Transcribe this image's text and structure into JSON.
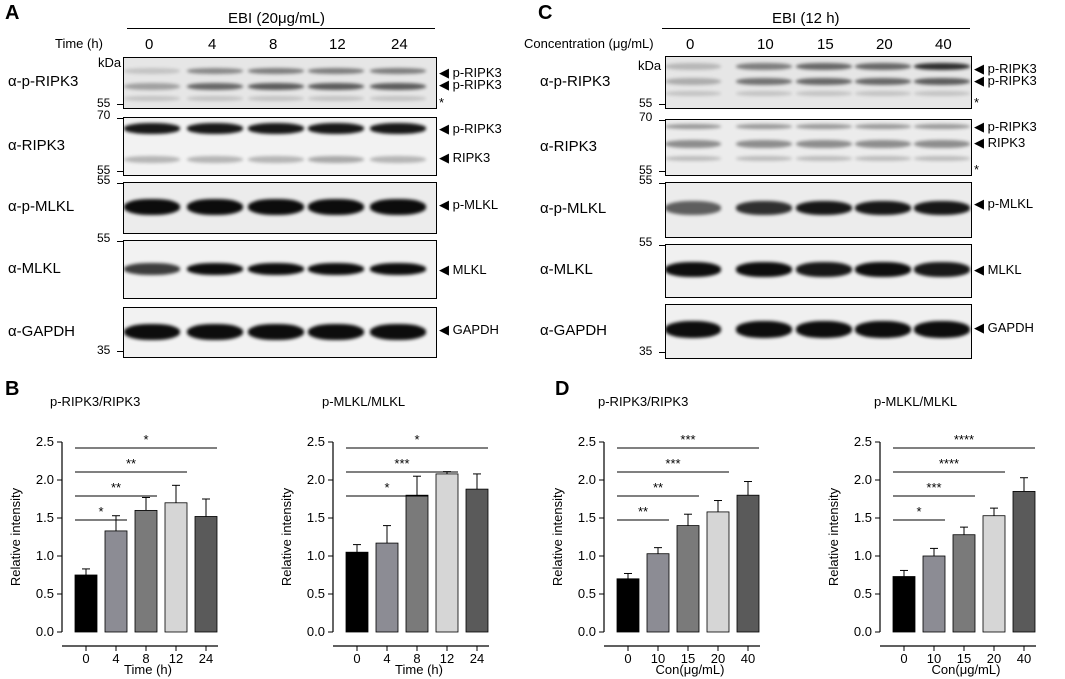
{
  "panels": {
    "A": "A",
    "B": "B",
    "C": "C",
    "D": "D"
  },
  "blotA": {
    "header": "EBI (20μg/mL)",
    "time_label": "Time (h)",
    "lanes": [
      "0",
      "4",
      "8",
      "12",
      "24"
    ],
    "kda": "kDa",
    "rows": [
      {
        "label": "α-p-RIPK3",
        "mw_top": "",
        "mw_bottom": "55",
        "arrows": [
          "p-RIPK3",
          "p-RIPK3"
        ],
        "star": "*"
      },
      {
        "label": "α-RIPK3",
        "mw_top": "70",
        "mw_bottom": "55",
        "arrows": [
          "p-RIPK3",
          "RIPK3"
        ],
        "star": ""
      },
      {
        "label": "α-p-MLKL",
        "mw_top": "55",
        "mw_bottom": "",
        "arrows": [
          "p-MLKL"
        ],
        "star": ""
      },
      {
        "label": "α-MLKL",
        "mw_top": "55",
        "mw_bottom": "",
        "arrows": [
          "MLKL"
        ],
        "star": ""
      },
      {
        "label": "α-GAPDH",
        "mw_top": "",
        "mw_bottom": "35",
        "arrows": [
          "GAPDH"
        ],
        "star": ""
      }
    ]
  },
  "blotC": {
    "header": "EBI (12 h)",
    "conc_label": "Concentration (μg/mL)",
    "lanes": [
      "0",
      "10",
      "15",
      "20",
      "40"
    ],
    "kda": "kDa",
    "rows": [
      {
        "label": "α-p-RIPK3",
        "mw_top": "",
        "mw_bottom": "55",
        "arrows": [
          "p-RIPK3",
          "p-RIPK3"
        ],
        "star": "*"
      },
      {
        "label": "α-RIPK3",
        "mw_top": "70",
        "mw_bottom": "55",
        "arrows": [
          "p-RIPK3",
          "RIPK3"
        ],
        "star": "*"
      },
      {
        "label": "α-p-MLKL",
        "mw_top": "55",
        "mw_bottom": "",
        "arrows": [
          "p-MLKL"
        ],
        "star": ""
      },
      {
        "label": "α-MLKL",
        "mw_top": "55",
        "mw_bottom": "",
        "arrows": [
          "MLKL"
        ],
        "star": ""
      },
      {
        "label": "α-GAPDH",
        "mw_top": "",
        "mw_bottom": "35",
        "arrows": [
          "GAPDH"
        ],
        "star": ""
      }
    ]
  },
  "chart_data": [
    {
      "type": "bar",
      "title": "p-RIPK3/RIPK3",
      "xlabel": "Time (h)",
      "ylabel": "Relative intensity",
      "categories": [
        "0",
        "4",
        "8",
        "12",
        "24"
      ],
      "values": [
        0.75,
        1.33,
        1.6,
        1.7,
        1.52
      ],
      "errors": [
        0.08,
        0.2,
        0.17,
        0.23,
        0.23
      ],
      "ylim": [
        0,
        2.5
      ],
      "yticks": [
        "0.0",
        "0.5",
        "1.0",
        "1.5",
        "2.0",
        "2.5"
      ],
      "sig": [
        {
          "from": 0,
          "to": 1,
          "label": "*"
        },
        {
          "from": 0,
          "to": 2,
          "label": "**"
        },
        {
          "from": 0,
          "to": 3,
          "label": "**"
        },
        {
          "from": 0,
          "to": 4,
          "label": "*"
        }
      ]
    },
    {
      "type": "bar",
      "title": "p-MLKL/MLKL",
      "xlabel": "Time (h)",
      "ylabel": "Relative intensity",
      "categories": [
        "0",
        "4",
        "8",
        "12",
        "24"
      ],
      "values": [
        1.05,
        1.17,
        1.8,
        2.08,
        1.88
      ],
      "errors": [
        0.1,
        0.23,
        0.25,
        0.03,
        0.2
      ],
      "ylim": [
        0,
        2.5
      ],
      "yticks": [
        "0.0",
        "0.5",
        "1.0",
        "1.5",
        "2.0",
        "2.5"
      ],
      "sig": [
        {
          "from": 0,
          "to": 2,
          "label": "*"
        },
        {
          "from": 0,
          "to": 3,
          "label": "***"
        },
        {
          "from": 0,
          "to": 4,
          "label": "*"
        }
      ]
    },
    {
      "type": "bar",
      "title": "p-RIPK3/RIPK3",
      "xlabel": "Con(μg/mL)",
      "ylabel": "Relative intensity",
      "categories": [
        "0",
        "10",
        "15",
        "20",
        "40"
      ],
      "values": [
        0.7,
        1.03,
        1.4,
        1.58,
        1.8
      ],
      "errors": [
        0.07,
        0.08,
        0.15,
        0.15,
        0.18
      ],
      "ylim": [
        0,
        2.5
      ],
      "yticks": [
        "0.0",
        "0.5",
        "1.0",
        "1.5",
        "2.0",
        "2.5"
      ],
      "sig": [
        {
          "from": 0,
          "to": 1,
          "label": "**"
        },
        {
          "from": 0,
          "to": 2,
          "label": "**"
        },
        {
          "from": 0,
          "to": 3,
          "label": "***"
        },
        {
          "from": 0,
          "to": 4,
          "label": "***"
        }
      ]
    },
    {
      "type": "bar",
      "title": "p-MLKL/MLKL",
      "xlabel": "Con(μg/mL)",
      "ylabel": "Relative intensity",
      "categories": [
        "0",
        "10",
        "15",
        "20",
        "40"
      ],
      "values": [
        0.73,
        1.0,
        1.28,
        1.53,
        1.85
      ],
      "errors": [
        0.08,
        0.1,
        0.1,
        0.1,
        0.18
      ],
      "ylim": [
        0,
        2.5
      ],
      "yticks": [
        "0.0",
        "0.5",
        "1.0",
        "1.5",
        "2.0",
        "2.5"
      ],
      "sig": [
        {
          "from": 0,
          "to": 1,
          "label": "*"
        },
        {
          "from": 0,
          "to": 2,
          "label": "***"
        },
        {
          "from": 0,
          "to": 3,
          "label": "****"
        },
        {
          "from": 0,
          "to": 4,
          "label": "****"
        }
      ]
    }
  ],
  "colors": {
    "bars": [
      "#000000",
      "#8c8c94",
      "#7a7a7a",
      "#d6d6d6",
      "#5a5a5a"
    ]
  }
}
